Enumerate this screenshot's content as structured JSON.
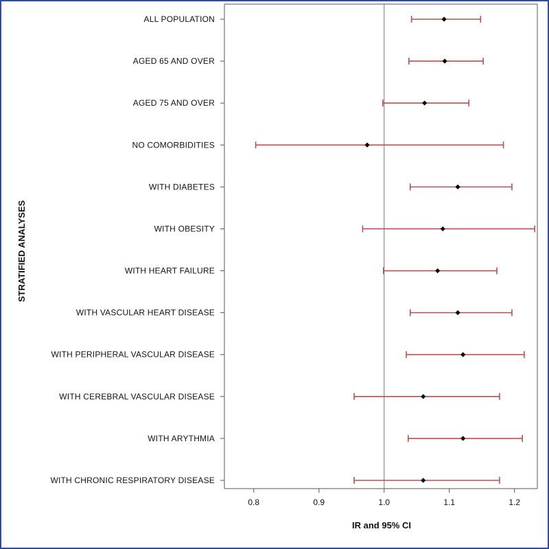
{
  "chart_data": {
    "type": "scatter",
    "subtype": "forest-plot",
    "xlabel": "IR and 95% CI",
    "ylabel": "STRATIFIED ANALYSES",
    "xlim": [
      0.755,
      1.235
    ],
    "xticks": [
      0.8,
      0.9,
      1.0,
      1.1,
      1.2
    ],
    "xtick_labels": [
      "0.8",
      "0.9",
      "1.0",
      "1.1",
      "1.2"
    ],
    "reference_line": 1.0,
    "grid": false,
    "colors": {
      "ci": "#b5524a",
      "point": "#000000",
      "reference": "#888888",
      "axis": "#555555",
      "frame": "#2f4f8f"
    },
    "rows": [
      {
        "label": "ALL POPULATION",
        "estimate": 1.092,
        "lower": 1.042,
        "upper": 1.148
      },
      {
        "label": "AGED 65 AND OVER",
        "estimate": 1.093,
        "lower": 1.038,
        "upper": 1.152
      },
      {
        "label": "AGED 75 AND OVER",
        "estimate": 1.062,
        "lower": 0.998,
        "upper": 1.13
      },
      {
        "label": "NO COMORBIDITIES",
        "estimate": 0.974,
        "lower": 0.803,
        "upper": 1.183
      },
      {
        "label": "WITH DIABETES",
        "estimate": 1.113,
        "lower": 1.04,
        "upper": 1.196
      },
      {
        "label": "WITH OBESITY",
        "estimate": 1.09,
        "lower": 0.967,
        "upper": 1.231
      },
      {
        "label": "WITH HEART FAILURE",
        "estimate": 1.082,
        "lower": 0.999,
        "upper": 1.173
      },
      {
        "label": "WITH VASCULAR HEART DISEASE",
        "estimate": 1.113,
        "lower": 1.04,
        "upper": 1.196
      },
      {
        "label": "WITH PERIPHERAL VASCULAR DISEASE",
        "estimate": 1.121,
        "lower": 1.034,
        "upper": 1.215
      },
      {
        "label": "WITH CEREBRAL VASCULAR DISEASE",
        "estimate": 1.06,
        "lower": 0.954,
        "upper": 1.177
      },
      {
        "label": "WITH ARYTHMIA",
        "estimate": 1.121,
        "lower": 1.037,
        "upper": 1.212
      },
      {
        "label": "WITH CHRONIC RESPIRATORY DISEASE",
        "estimate": 1.06,
        "lower": 0.954,
        "upper": 1.177
      }
    ]
  }
}
